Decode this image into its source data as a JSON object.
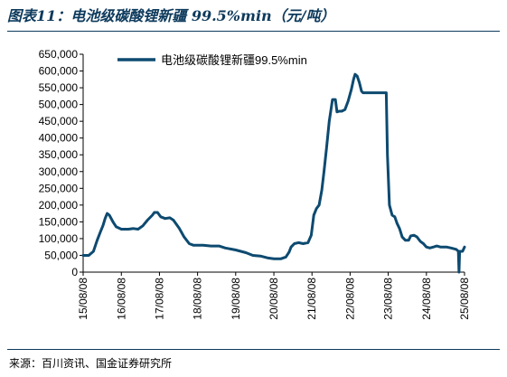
{
  "title": "图表11：电池级碳酸锂新疆 99.5%min（元/吨）",
  "source": "来源：百川资讯、国金证券研究所",
  "colors": {
    "line": "#0d4a70",
    "title": "#0d3a5c",
    "axis": "#000000"
  },
  "chart_data": {
    "type": "line",
    "title": "图表11：电池级碳酸锂新疆 99.5%min（元/吨）",
    "xlabel": "",
    "ylabel": "",
    "ylim": [
      0,
      650000
    ],
    "yticks": [
      0,
      50000,
      100000,
      150000,
      200000,
      250000,
      300000,
      350000,
      400000,
      450000,
      500000,
      550000,
      600000,
      650000
    ],
    "ytick_labels": [
      "0",
      "50,000",
      "100,000",
      "150,000",
      "200,000",
      "250,000",
      "300,000",
      "350,000",
      "400,000",
      "450,000",
      "500,000",
      "550,000",
      "600,000",
      "650,000"
    ],
    "xlim": [
      "2015-08-08",
      "2025-08-08"
    ],
    "xticks": [
      "2015-08-08",
      "2016-08-08",
      "2017-08-08",
      "2018-08-08",
      "2019-08-08",
      "2020-08-08",
      "2021-08-08",
      "2022-08-08",
      "2023-08-08",
      "2024-08-08",
      "2025-08-08"
    ],
    "xtick_labels": [
      "15/08/08",
      "16/08/08",
      "17/08/08",
      "18/08/08",
      "19/08/08",
      "20/08/08",
      "21/08/08",
      "22/08/08",
      "23/08/08",
      "24/08/08",
      "25/08/08"
    ],
    "legend": {
      "position": "top-left",
      "entries": [
        "电池级碳酸锂新疆99.5%min"
      ]
    },
    "grid": false,
    "series": [
      {
        "name": "电池级碳酸锂新疆99.5%min",
        "points": [
          [
            "2015-08-08",
            50000
          ],
          [
            "2015-10-01",
            50000
          ],
          [
            "2015-11-15",
            62000
          ],
          [
            "2015-12-20",
            95000
          ],
          [
            "2016-01-20",
            120000
          ],
          [
            "2016-02-15",
            140000
          ],
          [
            "2016-03-05",
            160000
          ],
          [
            "2016-03-25",
            175000
          ],
          [
            "2016-04-15",
            170000
          ],
          [
            "2016-05-20",
            150000
          ],
          [
            "2016-06-20",
            135000
          ],
          [
            "2016-08-08",
            128000
          ],
          [
            "2016-10-15",
            128000
          ],
          [
            "2016-12-01",
            130000
          ],
          [
            "2017-01-15",
            128000
          ],
          [
            "2017-03-01",
            138000
          ],
          [
            "2017-04-15",
            155000
          ],
          [
            "2017-06-01",
            170000
          ],
          [
            "2017-06-20",
            178000
          ],
          [
            "2017-07-20",
            178000
          ],
          [
            "2017-08-20",
            165000
          ],
          [
            "2017-10-01",
            160000
          ],
          [
            "2017-11-15",
            162000
          ],
          [
            "2017-12-20",
            155000
          ],
          [
            "2018-02-15",
            130000
          ],
          [
            "2018-04-01",
            105000
          ],
          [
            "2018-05-20",
            85000
          ],
          [
            "2018-07-01",
            80000
          ],
          [
            "2018-10-01",
            80000
          ],
          [
            "2018-12-15",
            78000
          ],
          [
            "2019-03-01",
            78000
          ],
          [
            "2019-05-01",
            72000
          ],
          [
            "2019-08-08",
            66000
          ],
          [
            "2019-11-15",
            58000
          ],
          [
            "2020-01-20",
            50000
          ],
          [
            "2020-04-01",
            48000
          ],
          [
            "2020-06-15",
            42000
          ],
          [
            "2020-08-08",
            40000
          ],
          [
            "2020-10-15",
            40000
          ],
          [
            "2020-12-01",
            45000
          ],
          [
            "2021-01-01",
            60000
          ],
          [
            "2021-01-20",
            75000
          ],
          [
            "2021-02-20",
            85000
          ],
          [
            "2021-04-01",
            88000
          ],
          [
            "2021-05-15",
            85000
          ],
          [
            "2021-07-01",
            88000
          ],
          [
            "2021-08-01",
            110000
          ],
          [
            "2021-08-25",
            170000
          ],
          [
            "2021-09-20",
            190000
          ],
          [
            "2021-10-15",
            200000
          ],
          [
            "2021-11-10",
            245000
          ],
          [
            "2021-12-01",
            300000
          ],
          [
            "2021-12-25",
            370000
          ],
          [
            "2022-01-20",
            450000
          ],
          [
            "2022-02-20",
            515000
          ],
          [
            "2022-03-20",
            515000
          ],
          [
            "2022-04-05",
            478000
          ],
          [
            "2022-04-25",
            480000
          ],
          [
            "2022-05-20",
            480000
          ],
          [
            "2022-06-20",
            485000
          ],
          [
            "2022-07-20",
            510000
          ],
          [
            "2022-08-20",
            545000
          ],
          [
            "2022-09-10",
            575000
          ],
          [
            "2022-09-25",
            590000
          ],
          [
            "2022-10-15",
            585000
          ],
          [
            "2022-11-05",
            565000
          ],
          [
            "2022-11-25",
            540000
          ],
          [
            "2022-12-10",
            535000
          ],
          [
            "2023-07-20",
            535000
          ],
          [
            "2023-08-01",
            350000
          ],
          [
            "2023-08-20",
            200000
          ],
          [
            "2023-09-15",
            170000
          ],
          [
            "2023-10-10",
            165000
          ],
          [
            "2023-11-01",
            145000
          ],
          [
            "2023-11-25",
            130000
          ],
          [
            "2023-12-20",
            105000
          ],
          [
            "2024-01-20",
            95000
          ],
          [
            "2024-02-20",
            95000
          ],
          [
            "2024-03-10",
            108000
          ],
          [
            "2024-04-10",
            110000
          ],
          [
            "2024-05-10",
            105000
          ],
          [
            "2024-06-10",
            92000
          ],
          [
            "2024-07-10",
            85000
          ],
          [
            "2024-08-08",
            75000
          ],
          [
            "2024-09-10",
            72000
          ],
          [
            "2024-10-15",
            75000
          ],
          [
            "2024-11-15",
            78000
          ],
          [
            "2024-12-20",
            75000
          ],
          [
            "2025-02-15",
            75000
          ],
          [
            "2025-04-01",
            72000
          ],
          [
            "2025-05-20",
            68000
          ],
          [
            "2025-06-10",
            62000
          ],
          [
            "2025-06-16",
            0
          ],
          [
            "2025-06-22",
            62000
          ],
          [
            "2025-07-20",
            62000
          ],
          [
            "2025-08-08",
            75000
          ]
        ]
      }
    ]
  }
}
